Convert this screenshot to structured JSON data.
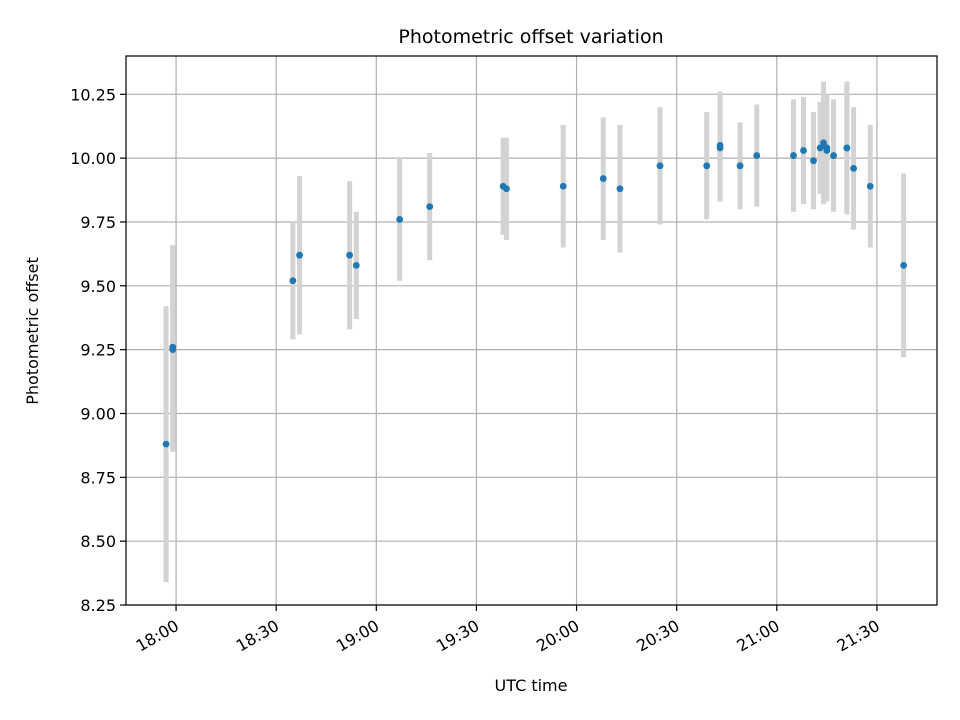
{
  "chart_data": {
    "type": "scatter",
    "title": "Photometric offset variation",
    "xlabel": "UTC time",
    "ylabel": "Photometric offset",
    "xlim": [
      "17:45",
      "21:48"
    ],
    "ylim": [
      8.25,
      10.4
    ],
    "grid": true,
    "x_ticks": [
      "18:00",
      "18:30",
      "19:00",
      "19:30",
      "20:00",
      "20:30",
      "21:00",
      "21:30"
    ],
    "y_ticks": [
      "8.25",
      "8.50",
      "8.75",
      "9.00",
      "9.25",
      "9.50",
      "9.75",
      "10.00",
      "10.25"
    ],
    "point_color": "#1f77b4",
    "errorbar_color": "#d3d3d3",
    "points": [
      {
        "x": "17:57",
        "y": 8.88,
        "err": 0.54
      },
      {
        "x": "17:59",
        "y": 9.25,
        "err": 0.4
      },
      {
        "x": "17:59",
        "y": 9.26,
        "err": 0.4
      },
      {
        "x": "18:35",
        "y": 9.52,
        "err": 0.23
      },
      {
        "x": "18:37",
        "y": 9.62,
        "err": 0.31
      },
      {
        "x": "18:52",
        "y": 9.62,
        "err": 0.29
      },
      {
        "x": "18:54",
        "y": 9.58,
        "err": 0.21
      },
      {
        "x": "19:07",
        "y": 9.76,
        "err": 0.24
      },
      {
        "x": "19:16",
        "y": 9.81,
        "err": 0.21
      },
      {
        "x": "19:38",
        "y": 9.89,
        "err": 0.19
      },
      {
        "x": "19:39",
        "y": 9.88,
        "err": 0.2
      },
      {
        "x": "19:56",
        "y": 9.89,
        "err": 0.24
      },
      {
        "x": "20:08",
        "y": 9.92,
        "err": 0.24
      },
      {
        "x": "20:13",
        "y": 9.88,
        "err": 0.25
      },
      {
        "x": "20:25",
        "y": 9.97,
        "err": 0.23
      },
      {
        "x": "20:39",
        "y": 9.97,
        "err": 0.21
      },
      {
        "x": "20:43",
        "y": 10.04,
        "err": 0.21
      },
      {
        "x": "20:43",
        "y": 10.05,
        "err": 0.21
      },
      {
        "x": "20:49",
        "y": 9.97,
        "err": 0.17
      },
      {
        "x": "20:54",
        "y": 10.01,
        "err": 0.2
      },
      {
        "x": "21:05",
        "y": 10.01,
        "err": 0.22
      },
      {
        "x": "21:08",
        "y": 10.03,
        "err": 0.21
      },
      {
        "x": "21:11",
        "y": 9.99,
        "err": 0.19
      },
      {
        "x": "21:13",
        "y": 10.04,
        "err": 0.18
      },
      {
        "x": "21:14",
        "y": 10.05,
        "err": 0.19
      },
      {
        "x": "21:14",
        "y": 10.06,
        "err": 0.24
      },
      {
        "x": "21:15",
        "y": 10.04,
        "err": 0.21
      },
      {
        "x": "21:15",
        "y": 10.03,
        "err": 0.2
      },
      {
        "x": "21:17",
        "y": 10.01,
        "err": 0.22
      },
      {
        "x": "21:21",
        "y": 10.04,
        "err": 0.26
      },
      {
        "x": "21:21",
        "y": 10.04,
        "err": 0.25
      },
      {
        "x": "21:23",
        "y": 9.96,
        "err": 0.24
      },
      {
        "x": "21:28",
        "y": 9.89,
        "err": 0.24
      },
      {
        "x": "21:38",
        "y": 9.58,
        "err": 0.36
      }
    ]
  }
}
